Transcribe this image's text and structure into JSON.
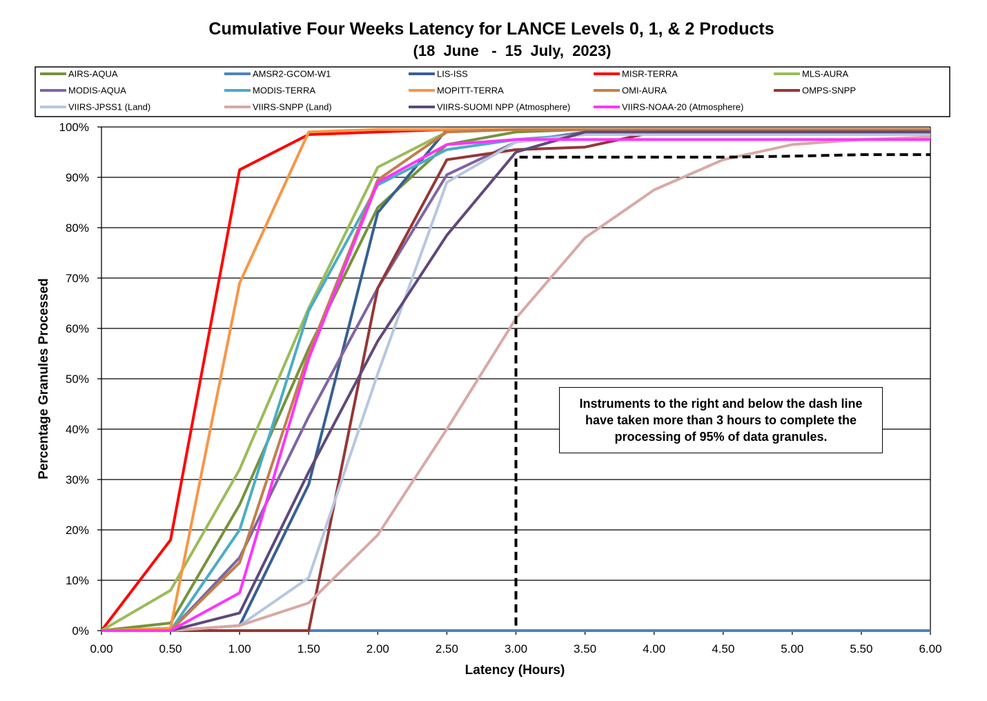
{
  "chart_data": {
    "type": "line",
    "title": "Cumulative Four Weeks Latency  for LANCE Levels 0, 1, & 2 Products",
    "subtitle": "(18  June   -  15  July,  2023)",
    "xlabel": "Latency (Hours)",
    "ylabel": "Percentage Granules Processed",
    "xlim": [
      0,
      6
    ],
    "ylim": [
      0,
      100
    ],
    "x_ticks": [
      "0.00",
      "0.50",
      "1.00",
      "1.50",
      "2.00",
      "2.50",
      "3.00",
      "3.50",
      "4.00",
      "4.50",
      "5.00",
      "5.50",
      "6.00"
    ],
    "y_ticks": [
      "0%",
      "10%",
      "20%",
      "30%",
      "40%",
      "50%",
      "60%",
      "70%",
      "80%",
      "90%",
      "100%"
    ],
    "grid": "horizontal",
    "legend_position": "top",
    "x": [
      0,
      0.5,
      1,
      1.5,
      2,
      2.5,
      3,
      3.5,
      4,
      4.5,
      5,
      5.5,
      6
    ],
    "series": [
      {
        "name": "AIRS-AQUA",
        "color": "#76923c",
        "values": [
          0,
          1.5,
          25,
          56,
          84,
          96.5,
          99,
          99.5,
          99.5,
          99.5,
          99.5,
          99.5,
          99.5
        ]
      },
      {
        "name": "AMSR2-GCOM-W1",
        "color": "#4f81bd",
        "values": [
          0,
          0,
          0,
          0,
          0,
          0,
          0,
          0,
          0,
          0,
          0,
          0,
          0
        ]
      },
      {
        "name": "LIS-ISS",
        "color": "#366092",
        "values": [
          0,
          0,
          1,
          29,
          83,
          99.5,
          99.5,
          99.5,
          99.5,
          99.5,
          99.5,
          99.5,
          99.5
        ]
      },
      {
        "name": "MISR-TERRA",
        "color": "#ff0000",
        "values": [
          0,
          18,
          91.5,
          98.5,
          99,
          99.5,
          99.5,
          99.5,
          99.5,
          99.5,
          99.5,
          99.5,
          99.5
        ]
      },
      {
        "name": "MLS-AURA",
        "color": "#9bbb59",
        "values": [
          0,
          8,
          32,
          64,
          92,
          99,
          99.5,
          99.5,
          99.5,
          99.5,
          99.5,
          99.5,
          99.5
        ]
      },
      {
        "name": "MODIS-AQUA",
        "color": "#8064a2",
        "values": [
          0,
          0,
          14.5,
          42.5,
          68,
          90.5,
          97,
          99,
          99,
          99,
          99,
          99,
          99
        ]
      },
      {
        "name": "MODIS-TERRA",
        "color": "#4bacc6",
        "values": [
          0,
          0,
          20,
          63.5,
          88.5,
          95.5,
          97.5,
          98.5,
          98.5,
          98.5,
          98.5,
          98.5,
          98.5
        ]
      },
      {
        "name": "MOPITT-TERRA",
        "color": "#f79646",
        "values": [
          0,
          0.5,
          69,
          99,
          99.5,
          99.5,
          99.5,
          99.5,
          99.5,
          99.5,
          99.5,
          99.5,
          99.5
        ]
      },
      {
        "name": "OMI-AURA",
        "color": "#c0804a",
        "values": [
          0,
          0,
          13.5,
          55,
          89.5,
          99,
          99.5,
          99.5,
          99.5,
          99.5,
          99.5,
          99.5,
          99.5
        ]
      },
      {
        "name": "OMPS-SNPP",
        "color": "#953735",
        "values": [
          0,
          0,
          0,
          0,
          68,
          93.5,
          95.5,
          96,
          99,
          99,
          99,
          99,
          99
        ]
      },
      {
        "name": "VIIRS-JPSS1 (Land)",
        "color": "#b7c7e0",
        "values": [
          0,
          0,
          1,
          10.5,
          51,
          89,
          97,
          98.5,
          98.5,
          98.5,
          98.5,
          98.5,
          98.5
        ]
      },
      {
        "name": "VIIRS-SNPP (Land)",
        "color": "#d8a9a5",
        "values": [
          0,
          0,
          1,
          5.5,
          19,
          40,
          62,
          78,
          87.5,
          93.5,
          96.5,
          97.5,
          98
        ]
      },
      {
        "name": "VIIRS-SUOMI NPP (Atmosphere)",
        "color": "#5f497a",
        "values": [
          0,
          0,
          3.5,
          31.5,
          57.5,
          78.5,
          95,
          99,
          99,
          99,
          99,
          99,
          99
        ]
      },
      {
        "name": "VIIRS-NOAA-20 (Atmosphere)",
        "color": "#ff33ff",
        "values": [
          0,
          0,
          7.5,
          54,
          89,
          96.5,
          97.5,
          97.5,
          97.5,
          97.5,
          97.5,
          97.5,
          97.5
        ]
      }
    ],
    "threshold_line": {
      "x": [
        3,
        3,
        3.5,
        4,
        4.5,
        5,
        5.5,
        6
      ],
      "y": [
        1,
        94,
        94,
        94,
        94,
        94.2,
        94.5,
        94.5
      ],
      "color": "#000000",
      "style": "dashed"
    },
    "annotation": "Instruments to the right and below the dash line have taken more than 3 hours to complete the processing of 95% of data granules."
  }
}
